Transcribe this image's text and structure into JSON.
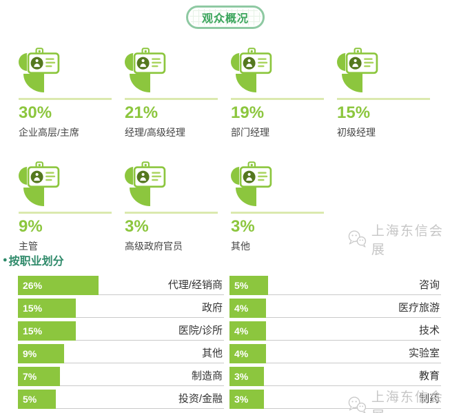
{
  "title": "观众概况",
  "audience": {
    "icon": "id-badge-pie-icon",
    "stats": [
      {
        "value": "30%",
        "label": "企业高层/主席"
      },
      {
        "value": "21%",
        "label": "经理/高级经理"
      },
      {
        "value": "19%",
        "label": "部门经理"
      },
      {
        "value": "15%",
        "label": "初级经理"
      },
      {
        "value": "9%",
        "label": "主管"
      },
      {
        "value": "3%",
        "label": "高级政府官员"
      },
      {
        "value": "3%",
        "label": "其他"
      }
    ]
  },
  "occupation_section": {
    "bullet": "●",
    "header": "按职业划分"
  },
  "chart_data": {
    "type": "bar",
    "title": "按职业划分",
    "orientation": "horizontal",
    "value_unit": "%",
    "legend": "none",
    "columns": [
      {
        "items": [
          {
            "label": "代理/经销商",
            "value": 26,
            "display": "26%"
          },
          {
            "label": "政府",
            "value": 15,
            "display": "15%"
          },
          {
            "label": "医院/诊所",
            "value": 15,
            "display": "15%"
          },
          {
            "label": "其他",
            "value": 9,
            "display": "9%"
          },
          {
            "label": "制造商",
            "value": 7,
            "display": "7%"
          },
          {
            "label": "投资/金融",
            "value": 5,
            "display": "5%"
          }
        ]
      },
      {
        "items": [
          {
            "label": "咨询",
            "value": 5,
            "display": "5%"
          },
          {
            "label": "医疗旅游",
            "value": 4,
            "display": "4%"
          },
          {
            "label": "技术",
            "value": 4,
            "display": "4%"
          },
          {
            "label": "实验室",
            "value": 4,
            "display": "4%"
          },
          {
            "label": "教育",
            "value": 3,
            "display": "3%"
          },
          {
            "label": "制药",
            "value": 3,
            "display": "3%"
          }
        ]
      }
    ]
  },
  "watermark": {
    "text": "上海东信会展",
    "icon": "wechat-icon"
  },
  "colors": {
    "accent_green": "#8cc63e",
    "pill_border": "#8ec9a2",
    "pill_text": "#3ba55c",
    "section_header": "#2f8a6a",
    "stat_divider": "#dbe9ae",
    "row_border": "#c9c9c9",
    "badge_dark": "#55781f",
    "watermark": "#c6c6c6"
  }
}
